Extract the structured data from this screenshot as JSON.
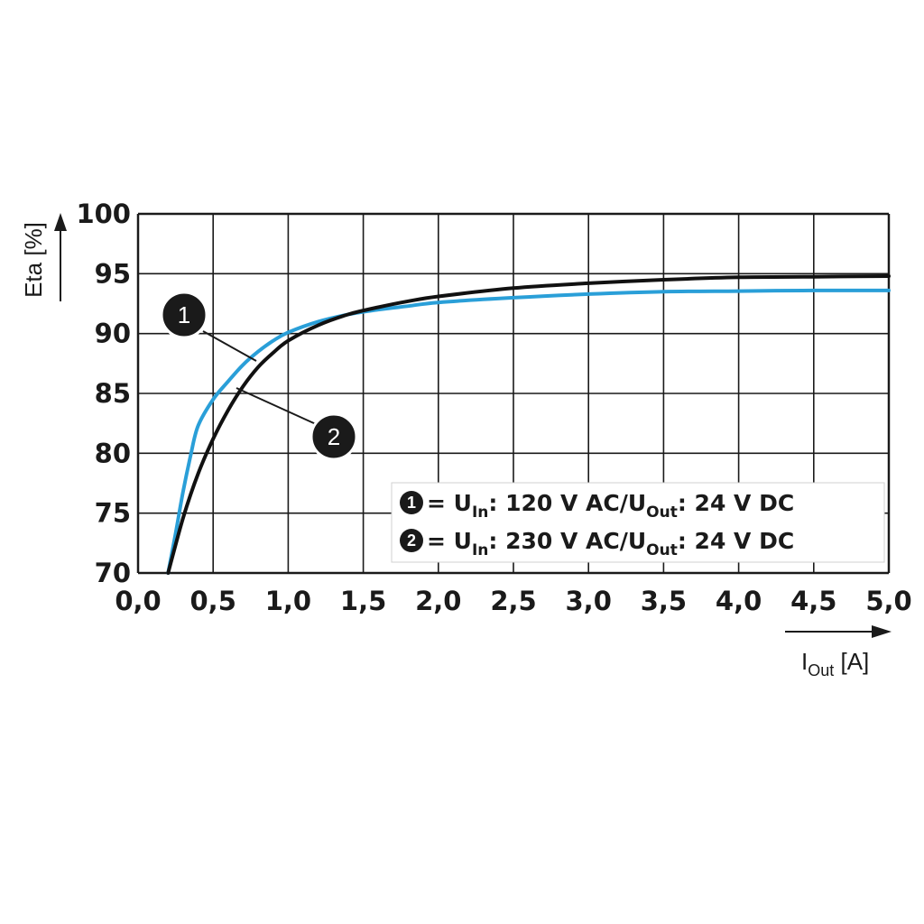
{
  "chart_data": {
    "type": "line",
    "y_axis": {
      "label": "Eta [%]",
      "min": 70,
      "max": 100,
      "step": 5,
      "ticks": [
        "70",
        "75",
        "80",
        "85",
        "90",
        "95",
        "100"
      ]
    },
    "x_axis": {
      "label_main": "I",
      "label_sub": "Out",
      "label_unit": " [A]",
      "min": 0.0,
      "max": 5.0,
      "step": 0.5,
      "ticks": [
        "0,0",
        "0,5",
        "1,0",
        "1,5",
        "2,0",
        "2,5",
        "3,0",
        "3,5",
        "4,0",
        "4,5",
        "5,0"
      ]
    },
    "grid": true,
    "legend_placement": "bottom-right",
    "series": [
      {
        "marker": "1",
        "color": "#111111",
        "legend": {
          "prefix": " = U",
          "sub1": "In",
          "mid": ": 120 V AC/U",
          "sub2": "Out",
          "suffix": ": 24 V DC"
        },
        "x": [
          0.2,
          0.3,
          0.4,
          0.5,
          0.6,
          0.7,
          0.8,
          0.9,
          1.0,
          1.2,
          1.4,
          1.6,
          1.8,
          2.0,
          2.5,
          3.0,
          3.5,
          4.0,
          4.5,
          5.0
        ],
        "y": [
          70.0,
          74.6,
          78.3,
          81.2,
          83.6,
          85.6,
          87.2,
          88.4,
          89.4,
          90.7,
          91.6,
          92.2,
          92.7,
          93.1,
          93.8,
          94.2,
          94.5,
          94.7,
          94.75,
          94.8
        ]
      },
      {
        "marker": "2",
        "color": "#2a9fd8",
        "legend": {
          "prefix": " = U",
          "sub1": "In",
          "mid": ": 230 V AC/U",
          "sub2": "Out",
          "suffix": ": 24 V DC"
        },
        "x": [
          0.2,
          0.25,
          0.3,
          0.35,
          0.4,
          0.5,
          0.6,
          0.7,
          0.8,
          0.9,
          1.0,
          1.2,
          1.4,
          1.6,
          1.8,
          2.0,
          2.5,
          3.0,
          3.5,
          4.0,
          4.5,
          5.0
        ],
        "y": [
          70.0,
          73.3,
          76.8,
          79.8,
          82.3,
          84.5,
          86.0,
          87.4,
          88.5,
          89.4,
          90.1,
          91.0,
          91.6,
          92.0,
          92.3,
          92.6,
          93.0,
          93.3,
          93.5,
          93.55,
          93.6,
          93.6
        ]
      }
    ]
  }
}
